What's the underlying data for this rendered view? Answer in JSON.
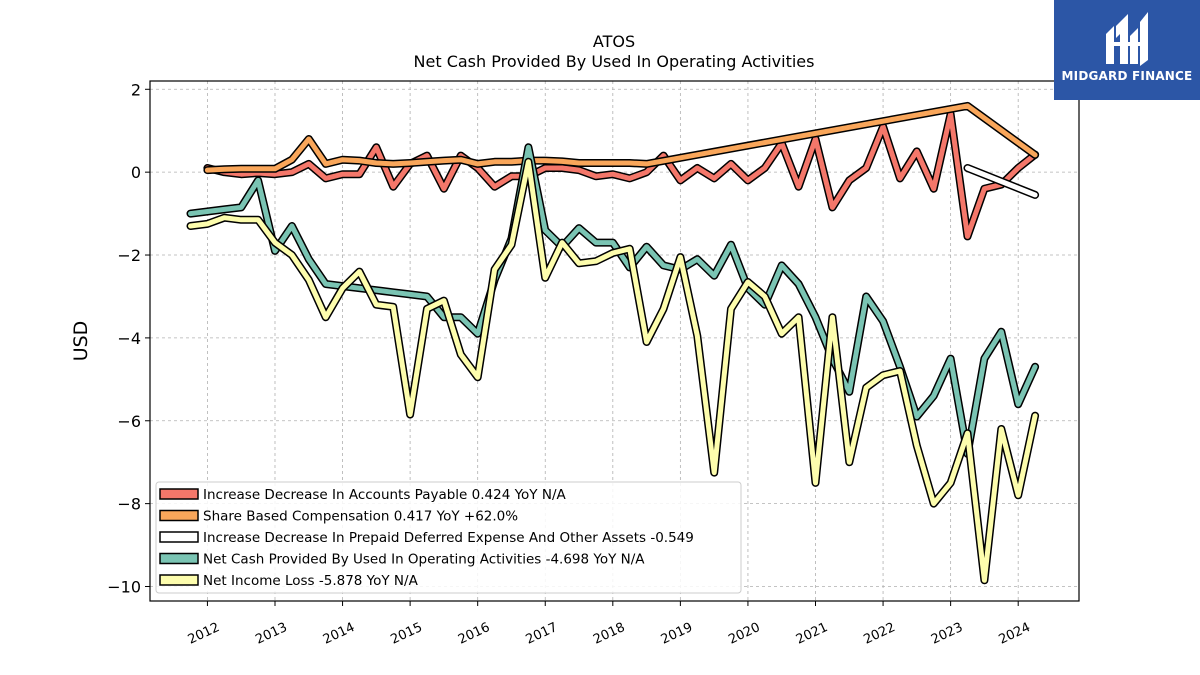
{
  "brand": {
    "name": "MIDGARD FINANCE",
    "bg_color": "#2c56a6",
    "icon": "midgard-logo-icon"
  },
  "chart_data": {
    "type": "line",
    "title": "ATOS",
    "subtitle": "Net Cash Provided By Used In Operating Activities",
    "ylabel": "USD",
    "xlabel": "",
    "xlim": [
      2011.15,
      2024.9
    ],
    "ylim": [
      -10.35,
      2.2
    ],
    "yticks": [
      2,
      0,
      -2,
      -4,
      -6,
      -8,
      -10
    ],
    "ytick_labels": [
      "2",
      "0",
      "−2",
      "−4",
      "−6",
      "−8",
      "−10"
    ],
    "xticks": [
      "2012",
      "2013",
      "2014",
      "2015",
      "2016",
      "2017",
      "2018",
      "2019",
      "2020",
      "2021",
      "2022",
      "2023",
      "2024"
    ],
    "grid": true,
    "legend_position": "bottom-left",
    "series": [
      {
        "name": "Increase Decrease In Accounts Payable",
        "legend_label": "Increase Decrease In Accounts Payable  0.424 YoY N/A",
        "color": "#f4776a",
        "x": [
          2012.0,
          2012.25,
          2012.5,
          2012.75,
          2013.0,
          2013.25,
          2013.5,
          2013.75,
          2014.0,
          2014.25,
          2014.5,
          2014.75,
          2015.0,
          2015.25,
          2015.5,
          2015.75,
          2016.0,
          2016.25,
          2016.5,
          2016.75,
          2017.0,
          2017.25,
          2017.5,
          2017.75,
          2018.0,
          2018.25,
          2018.5,
          2018.75,
          2019.0,
          2019.25,
          2019.5,
          2019.75,
          2020.0,
          2020.25,
          2020.5,
          2020.75,
          2021.0,
          2021.25,
          2021.5,
          2021.75,
          2022.0,
          2022.25,
          2022.5,
          2022.75,
          2023.0,
          2023.25,
          2023.5,
          2023.75,
          2024.0,
          2024.25
        ],
        "y": [
          0.1,
          0.0,
          -0.05,
          -0.02,
          -0.05,
          0.0,
          0.2,
          -0.15,
          -0.05,
          -0.05,
          0.6,
          -0.35,
          0.2,
          0.4,
          -0.4,
          0.4,
          0.1,
          -0.35,
          -0.1,
          -0.1,
          0.1,
          0.1,
          0.05,
          -0.1,
          -0.05,
          -0.15,
          0.0,
          0.4,
          -0.2,
          0.1,
          -0.15,
          0.2,
          -0.2,
          0.1,
          0.7,
          -0.35,
          0.8,
          -0.85,
          -0.2,
          0.1,
          1.1,
          -0.15,
          0.5,
          -0.4,
          1.4,
          -1.55,
          -0.4,
          -0.3,
          0.1,
          0.424
        ]
      },
      {
        "name": "Share Based Compensation",
        "legend_label": "Share Based Compensation  0.417 YoY +62.0%",
        "color": "#f9a65a",
        "x": [
          2012.0,
          2012.25,
          2012.5,
          2012.75,
          2013.0,
          2013.25,
          2013.5,
          2013.75,
          2014.0,
          2014.25,
          2014.5,
          2014.75,
          2015.0,
          2015.25,
          2015.5,
          2015.75,
          2016.0,
          2016.25,
          2016.5,
          2016.75,
          2017.0,
          2017.25,
          2017.5,
          2017.75,
          2018.0,
          2018.25,
          2018.5,
          2023.25,
          2024.25
        ],
        "y": [
          0.05,
          0.07,
          0.08,
          0.08,
          0.08,
          0.3,
          0.8,
          0.2,
          0.3,
          0.28,
          0.22,
          0.2,
          0.22,
          0.25,
          0.28,
          0.3,
          0.2,
          0.25,
          0.25,
          0.28,
          0.28,
          0.26,
          0.22,
          0.22,
          0.22,
          0.22,
          0.2,
          1.6,
          0.417
        ]
      },
      {
        "name": "Increase Decrease In Prepaid Deferred Expense And Other Assets",
        "legend_label": "Increase Decrease In Prepaid Deferred Expense And Other Assets  -0.549",
        "color": "#ffffff",
        "x": [
          2023.25,
          2024.25
        ],
        "y": [
          0.1,
          -0.549
        ]
      },
      {
        "name": "Net Cash Provided By Used In Operating Activities",
        "legend_label": "Net Cash Provided By Used In Operating Activities  -4.698 YoY N/A",
        "color": "#7ac4b3",
        "x": [
          2011.75,
          2012.0,
          2012.25,
          2012.5,
          2012.75,
          2013.0,
          2013.25,
          2013.5,
          2013.75,
          2014.0,
          2014.25,
          2014.5,
          2014.75,
          2015.0,
          2015.25,
          2015.5,
          2015.75,
          2016.0,
          2016.25,
          2016.5,
          2016.75,
          2017.0,
          2017.25,
          2017.5,
          2017.75,
          2018.0,
          2018.25,
          2018.5,
          2018.75,
          2019.0,
          2019.25,
          2019.5,
          2019.75,
          2020.0,
          2020.25,
          2020.5,
          2020.75,
          2021.0,
          2021.25,
          2021.5,
          2021.75,
          2022.0,
          2022.25,
          2022.5,
          2022.75,
          2023.0,
          2023.25,
          2023.5,
          2023.75,
          2024.0,
          2024.25
        ],
        "y": [
          -1.0,
          -0.95,
          -0.9,
          -0.85,
          -0.2,
          -1.9,
          -1.3,
          -2.1,
          -2.7,
          -2.75,
          -2.8,
          -2.85,
          -2.9,
          -2.95,
          -3.0,
          -3.5,
          -3.5,
          -3.9,
          -2.6,
          -1.6,
          0.6,
          -1.4,
          -1.8,
          -1.35,
          -1.7,
          -1.7,
          -2.3,
          -1.8,
          -2.25,
          -2.35,
          -2.1,
          -2.5,
          -1.75,
          -2.8,
          -3.2,
          -2.25,
          -2.7,
          -3.5,
          -4.5,
          -5.3,
          -3.0,
          -3.6,
          -4.7,
          -5.9,
          -5.4,
          -4.5,
          -6.8,
          -4.5,
          -3.85,
          -5.6,
          -4.698
        ]
      },
      {
        "name": "Net Income Loss",
        "legend_label": "Net Income Loss  -5.878 YoY N/A",
        "color": "#fdfdad",
        "x": [
          2011.75,
          2012.0,
          2012.25,
          2012.5,
          2012.75,
          2013.0,
          2013.25,
          2013.5,
          2013.75,
          2014.0,
          2014.25,
          2014.5,
          2014.75,
          2015.0,
          2015.25,
          2015.5,
          2015.75,
          2016.0,
          2016.25,
          2016.5,
          2016.75,
          2017.0,
          2017.25,
          2017.5,
          2017.75,
          2018.0,
          2018.25,
          2018.5,
          2018.75,
          2019.0,
          2019.25,
          2019.5,
          2019.75,
          2020.0,
          2020.25,
          2020.5,
          2020.75,
          2021.0,
          2021.25,
          2021.5,
          2021.75,
          2022.0,
          2022.25,
          2022.5,
          2022.75,
          2023.0,
          2023.25,
          2023.5,
          2023.75,
          2024.0,
          2024.25
        ],
        "y": [
          -1.3,
          -1.25,
          -1.1,
          -1.15,
          -1.15,
          -1.7,
          -2.0,
          -2.6,
          -3.5,
          -2.8,
          -2.4,
          -3.2,
          -3.25,
          -5.85,
          -3.3,
          -3.1,
          -4.4,
          -4.95,
          -2.35,
          -1.75,
          0.25,
          -2.55,
          -1.7,
          -2.2,
          -2.15,
          -1.95,
          -1.85,
          -4.1,
          -3.3,
          -2.05,
          -3.95,
          -7.25,
          -3.3,
          -2.65,
          -3.0,
          -3.9,
          -3.5,
          -7.5,
          -3.5,
          -7.0,
          -5.2,
          -4.9,
          -4.8,
          -6.6,
          -8.0,
          -7.5,
          -6.3,
          -9.85,
          -6.2,
          -7.8,
          -5.878
        ]
      }
    ]
  }
}
